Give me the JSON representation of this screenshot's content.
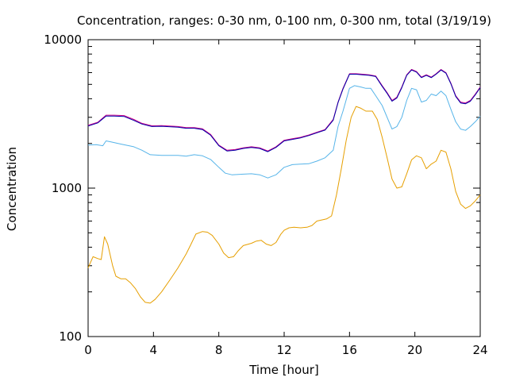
{
  "chart_data": {
    "type": "line",
    "title": "Concentration, ranges: 0-30 nm, 0-100 nm, 0-300 nm, total (3/19/19)",
    "xlabel": "Time [hour]",
    "ylabel": "Concentration",
    "xlim": [
      0,
      24
    ],
    "ylim": [
      100,
      10000
    ],
    "yscale": "log",
    "grid": false,
    "legend": "none",
    "x_ticks": [
      "0",
      "4",
      "8",
      "12",
      "16",
      "20",
      "24"
    ],
    "y_ticks": [
      "100",
      "1000",
      "10000"
    ],
    "series": [
      {
        "color": "#e69f00",
        "points": [
          [
            0,
            290
          ],
          [
            0.3,
            345
          ],
          [
            0.6,
            335
          ],
          [
            0.8,
            330
          ],
          [
            1.0,
            470
          ],
          [
            1.2,
            420
          ],
          [
            1.5,
            300
          ],
          [
            1.7,
            255
          ],
          [
            2.0,
            245
          ],
          [
            2.3,
            245
          ],
          [
            2.6,
            230
          ],
          [
            2.9,
            210
          ],
          [
            3.2,
            185
          ],
          [
            3.5,
            170
          ],
          [
            3.8,
            168
          ],
          [
            4.1,
            178
          ],
          [
            4.5,
            200
          ],
          [
            5.0,
            240
          ],
          [
            5.5,
            290
          ],
          [
            6.0,
            360
          ],
          [
            6.3,
            420
          ],
          [
            6.6,
            490
          ],
          [
            7.0,
            510
          ],
          [
            7.3,
            505
          ],
          [
            7.6,
            480
          ],
          [
            8.0,
            420
          ],
          [
            8.3,
            365
          ],
          [
            8.6,
            340
          ],
          [
            8.9,
            345
          ],
          [
            9.2,
            380
          ],
          [
            9.5,
            410
          ],
          [
            10.0,
            425
          ],
          [
            10.3,
            440
          ],
          [
            10.6,
            445
          ],
          [
            10.9,
            420
          ],
          [
            11.2,
            410
          ],
          [
            11.5,
            430
          ],
          [
            11.8,
            490
          ],
          [
            12.0,
            520
          ],
          [
            12.3,
            540
          ],
          [
            12.6,
            545
          ],
          [
            13.0,
            540
          ],
          [
            13.4,
            545
          ],
          [
            13.7,
            560
          ],
          [
            14.0,
            600
          ],
          [
            14.3,
            610
          ],
          [
            14.6,
            620
          ],
          [
            14.9,
            650
          ],
          [
            15.2,
            900
          ],
          [
            15.5,
            1350
          ],
          [
            15.8,
            2100
          ],
          [
            16.1,
            3000
          ],
          [
            16.4,
            3550
          ],
          [
            16.7,
            3450
          ],
          [
            17.0,
            3300
          ],
          [
            17.4,
            3300
          ],
          [
            17.7,
            2900
          ],
          [
            18.0,
            2200
          ],
          [
            18.3,
            1600
          ],
          [
            18.6,
            1150
          ],
          [
            18.9,
            1000
          ],
          [
            19.2,
            1020
          ],
          [
            19.5,
            1250
          ],
          [
            19.8,
            1550
          ],
          [
            20.1,
            1650
          ],
          [
            20.4,
            1600
          ],
          [
            20.7,
            1350
          ],
          [
            21.0,
            1450
          ],
          [
            21.3,
            1520
          ],
          [
            21.6,
            1800
          ],
          [
            21.9,
            1750
          ],
          [
            22.2,
            1350
          ],
          [
            22.5,
            950
          ],
          [
            22.8,
            780
          ],
          [
            23.1,
            730
          ],
          [
            23.4,
            760
          ],
          [
            23.7,
            820
          ],
          [
            24.0,
            900
          ]
        ]
      },
      {
        "color": "#56b4e9",
        "points": [
          [
            0,
            1950
          ],
          [
            0.5,
            1960
          ],
          [
            0.9,
            1930
          ],
          [
            1.1,
            2080
          ],
          [
            1.4,
            2050
          ],
          [
            2.0,
            1980
          ],
          [
            2.8,
            1900
          ],
          [
            3.3,
            1800
          ],
          [
            3.8,
            1680
          ],
          [
            4.5,
            1660
          ],
          [
            5.5,
            1660
          ],
          [
            6.0,
            1640
          ],
          [
            6.5,
            1680
          ],
          [
            7.0,
            1650
          ],
          [
            7.5,
            1560
          ],
          [
            8.0,
            1380
          ],
          [
            8.4,
            1260
          ],
          [
            8.8,
            1230
          ],
          [
            9.4,
            1240
          ],
          [
            10.0,
            1250
          ],
          [
            10.5,
            1230
          ],
          [
            11.0,
            1170
          ],
          [
            11.5,
            1230
          ],
          [
            12.0,
            1380
          ],
          [
            12.5,
            1440
          ],
          [
            13.0,
            1450
          ],
          [
            13.5,
            1460
          ],
          [
            14.0,
            1520
          ],
          [
            14.5,
            1600
          ],
          [
            15.0,
            1800
          ],
          [
            15.3,
            2600
          ],
          [
            15.6,
            3300
          ],
          [
            16.0,
            4700
          ],
          [
            16.3,
            4900
          ],
          [
            16.7,
            4800
          ],
          [
            17.0,
            4700
          ],
          [
            17.3,
            4700
          ],
          [
            17.6,
            4200
          ],
          [
            18.0,
            3600
          ],
          [
            18.3,
            3000
          ],
          [
            18.6,
            2500
          ],
          [
            18.9,
            2600
          ],
          [
            19.2,
            3000
          ],
          [
            19.5,
            3900
          ],
          [
            19.8,
            4700
          ],
          [
            20.1,
            4600
          ],
          [
            20.4,
            3800
          ],
          [
            20.7,
            3900
          ],
          [
            21.0,
            4300
          ],
          [
            21.3,
            4200
          ],
          [
            21.6,
            4500
          ],
          [
            21.9,
            4200
          ],
          [
            22.2,
            3400
          ],
          [
            22.5,
            2800
          ],
          [
            22.8,
            2500
          ],
          [
            23.1,
            2450
          ],
          [
            23.4,
            2600
          ],
          [
            23.7,
            2800
          ],
          [
            24.0,
            3050
          ]
        ]
      },
      {
        "color": "#cc0088",
        "points": [
          [
            0,
            2650
          ],
          [
            0.6,
            2780
          ],
          [
            1.1,
            3100
          ],
          [
            1.6,
            3100
          ],
          [
            2.2,
            3080
          ],
          [
            2.8,
            2900
          ],
          [
            3.3,
            2730
          ],
          [
            3.9,
            2630
          ],
          [
            4.5,
            2640
          ],
          [
            5.5,
            2600
          ],
          [
            6.0,
            2560
          ],
          [
            6.5,
            2560
          ],
          [
            7.0,
            2510
          ],
          [
            7.5,
            2300
          ],
          [
            8.0,
            1950
          ],
          [
            8.5,
            1800
          ],
          [
            9.0,
            1820
          ],
          [
            9.5,
            1870
          ],
          [
            10.0,
            1900
          ],
          [
            10.5,
            1870
          ],
          [
            11.0,
            1780
          ],
          [
            11.5,
            1900
          ],
          [
            12.0,
            2100
          ],
          [
            12.5,
            2150
          ],
          [
            13.0,
            2200
          ],
          [
            13.5,
            2280
          ],
          [
            14.0,
            2380
          ],
          [
            14.5,
            2480
          ],
          [
            15.0,
            2900
          ],
          [
            15.3,
            3800
          ],
          [
            15.6,
            4700
          ],
          [
            16.0,
            5900
          ],
          [
            16.4,
            5900
          ],
          [
            16.8,
            5850
          ],
          [
            17.2,
            5800
          ],
          [
            17.6,
            5700
          ],
          [
            18.0,
            4900
          ],
          [
            18.3,
            4400
          ],
          [
            18.6,
            3900
          ],
          [
            18.9,
            4100
          ],
          [
            19.2,
            4800
          ],
          [
            19.5,
            5800
          ],
          [
            19.8,
            6300
          ],
          [
            20.1,
            6100
          ],
          [
            20.4,
            5600
          ],
          [
            20.7,
            5800
          ],
          [
            21.0,
            5600
          ],
          [
            21.3,
            5900
          ],
          [
            21.6,
            6300
          ],
          [
            21.9,
            6000
          ],
          [
            22.2,
            5100
          ],
          [
            22.5,
            4200
          ],
          [
            22.8,
            3800
          ],
          [
            23.1,
            3750
          ],
          [
            23.4,
            3900
          ],
          [
            23.7,
            4300
          ],
          [
            24.0,
            4800
          ]
        ]
      },
      {
        "color": "#0000aa",
        "points": [
          [
            0,
            2620
          ],
          [
            0.6,
            2750
          ],
          [
            1.1,
            3060
          ],
          [
            1.6,
            3060
          ],
          [
            2.2,
            3040
          ],
          [
            2.8,
            2860
          ],
          [
            3.3,
            2700
          ],
          [
            3.9,
            2600
          ],
          [
            4.5,
            2610
          ],
          [
            5.5,
            2570
          ],
          [
            6.0,
            2530
          ],
          [
            6.5,
            2530
          ],
          [
            7.0,
            2480
          ],
          [
            7.5,
            2270
          ],
          [
            8.0,
            1930
          ],
          [
            8.5,
            1780
          ],
          [
            9.0,
            1800
          ],
          [
            9.5,
            1850
          ],
          [
            10.0,
            1880
          ],
          [
            10.5,
            1850
          ],
          [
            11.0,
            1760
          ],
          [
            11.5,
            1880
          ],
          [
            12.0,
            2080
          ],
          [
            12.5,
            2130
          ],
          [
            13.0,
            2180
          ],
          [
            13.5,
            2260
          ],
          [
            14.0,
            2360
          ],
          [
            14.5,
            2460
          ],
          [
            15.0,
            2870
          ],
          [
            15.3,
            3770
          ],
          [
            15.6,
            4650
          ],
          [
            16.0,
            5850
          ],
          [
            16.4,
            5850
          ],
          [
            16.8,
            5800
          ],
          [
            17.2,
            5750
          ],
          [
            17.6,
            5650
          ],
          [
            18.0,
            4850
          ],
          [
            18.3,
            4350
          ],
          [
            18.6,
            3850
          ],
          [
            18.9,
            4050
          ],
          [
            19.2,
            4750
          ],
          [
            19.5,
            5750
          ],
          [
            19.8,
            6250
          ],
          [
            20.1,
            6050
          ],
          [
            20.4,
            5550
          ],
          [
            20.7,
            5750
          ],
          [
            21.0,
            5550
          ],
          [
            21.3,
            5850
          ],
          [
            21.6,
            6250
          ],
          [
            21.9,
            5950
          ],
          [
            22.2,
            5050
          ],
          [
            22.5,
            4150
          ],
          [
            22.8,
            3750
          ],
          [
            23.1,
            3700
          ],
          [
            23.4,
            3850
          ],
          [
            23.7,
            4250
          ],
          [
            24.0,
            4750
          ]
        ]
      }
    ]
  }
}
